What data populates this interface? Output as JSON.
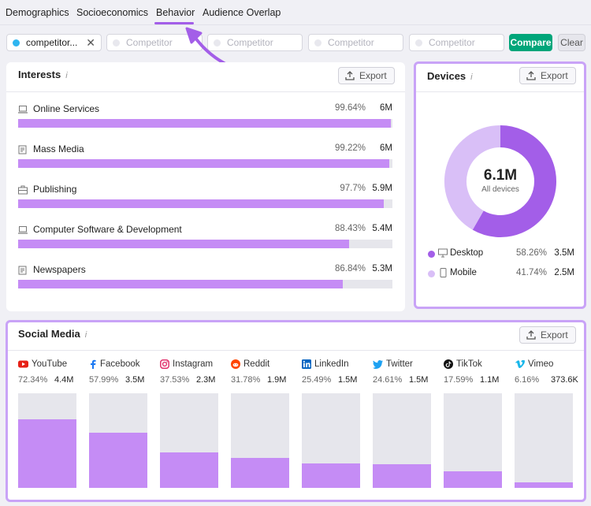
{
  "tabs": [
    {
      "label": "Demographics"
    },
    {
      "label": "Socioeconomics"
    },
    {
      "label": "Behavior"
    },
    {
      "label": "Audience Overlap"
    }
  ],
  "competitors": {
    "first_value": "competitor...",
    "placeholder": "Competitor",
    "compare_label": "Compare",
    "clear_label": "Clear"
  },
  "interests": {
    "title": "Interests",
    "info_icon": "i",
    "export_label": "Export",
    "items": [
      {
        "name": "Online Services",
        "percent": "99.64%",
        "count": "6M",
        "value": 99.64,
        "icon": "laptop-icon"
      },
      {
        "name": "Mass Media",
        "percent": "99.22%",
        "count": "6M",
        "value": 99.22,
        "icon": "newspaper-icon"
      },
      {
        "name": "Publishing",
        "percent": "97.7%",
        "count": "5.9M",
        "value": 97.7,
        "icon": "briefcase-icon"
      },
      {
        "name": "Computer Software & Development",
        "percent": "88.43%",
        "count": "5.4M",
        "value": 88.43,
        "icon": "laptop-icon"
      },
      {
        "name": "Newspapers",
        "percent": "86.84%",
        "count": "5.3M",
        "value": 86.84,
        "icon": "newspaper-icon"
      }
    ]
  },
  "devices": {
    "title": "Devices",
    "info_icon": "i",
    "export_label": "Export",
    "total": "6.1M",
    "total_label": "All devices",
    "items": [
      {
        "name": "Desktop",
        "percent": "58.26%",
        "count": "3.5M",
        "value": 58.26,
        "color": "#a35ee8"
      },
      {
        "name": "Mobile",
        "percent": "41.74%",
        "count": "2.5M",
        "value": 41.74,
        "color": "#d9bff7"
      }
    ]
  },
  "social": {
    "title": "Social Media",
    "info_icon": "i",
    "export_label": "Export",
    "items": [
      {
        "name": "YouTube",
        "percent": "72.34%",
        "count": "4.4M",
        "value": 72.34,
        "icon": "youtube-icon",
        "color": "#e62117"
      },
      {
        "name": "Facebook",
        "percent": "57.99%",
        "count": "3.5M",
        "value": 57.99,
        "icon": "facebook-icon",
        "color": "#1877f2"
      },
      {
        "name": "Instagram",
        "percent": "37.53%",
        "count": "2.3M",
        "value": 37.53,
        "icon": "instagram-icon",
        "color": "#e1306c"
      },
      {
        "name": "Reddit",
        "percent": "31.78%",
        "count": "1.9M",
        "value": 31.78,
        "icon": "reddit-icon",
        "color": "#ff4500"
      },
      {
        "name": "LinkedIn",
        "percent": "25.49%",
        "count": "1.5M",
        "value": 25.49,
        "icon": "linkedin-icon",
        "color": "#0a66c2"
      },
      {
        "name": "Twitter",
        "percent": "24.61%",
        "count": "1.5M",
        "value": 24.61,
        "icon": "twitter-icon",
        "color": "#1da1f2"
      },
      {
        "name": "TikTok",
        "percent": "17.59%",
        "count": "1.1M",
        "value": 17.59,
        "icon": "tiktok-icon",
        "color": "#111111"
      },
      {
        "name": "Vimeo",
        "percent": "6.16%",
        "count": "373.6K",
        "value": 6.16,
        "icon": "vimeo-icon",
        "color": "#1ab7ea"
      }
    ]
  },
  "colors": {
    "accent": "#a35ee8",
    "bar_fill": "#c58cf5",
    "compare_green": "#00a67a",
    "highlight_border": "#c9a3f7"
  }
}
